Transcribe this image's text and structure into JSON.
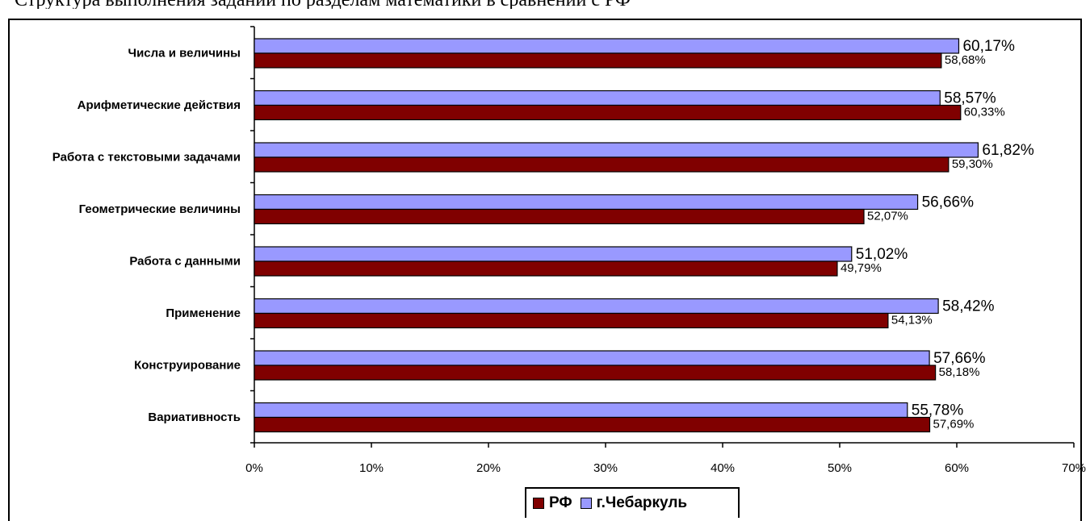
{
  "header_fragment": "Структура выполнения заданий по разделам математики в сравнении с РФ",
  "chart_data": {
    "type": "bar",
    "orientation": "horizontal",
    "categories": [
      "Числа и величины",
      "Арифметические действия",
      "Работа с текстовыми задачами",
      "Геометрические величины",
      "Работа с данными",
      "Применение",
      "Конструирование",
      "Вариативность"
    ],
    "series": [
      {
        "name": "г.Чебаркуль",
        "color": "#9999ff",
        "values": [
          60.17,
          58.57,
          61.82,
          56.66,
          51.02,
          58.42,
          57.66,
          55.78
        ],
        "labels": [
          "60,17%",
          "58,57%",
          "61,82%",
          "56,66%",
          "51,02%",
          "58,42%",
          "57,66%",
          "55,78%"
        ]
      },
      {
        "name": "РФ",
        "color": "#800000",
        "values": [
          58.68,
          60.33,
          59.3,
          52.07,
          49.79,
          54.13,
          58.18,
          57.69
        ],
        "labels": [
          "58,68%",
          "60,33%",
          "59,30%",
          "52,07%",
          "49,79%",
          "54,13%",
          "58,18%",
          "57,69%"
        ]
      }
    ],
    "xlim": [
      0,
      70
    ],
    "xticks": [
      0,
      10,
      20,
      30,
      40,
      50,
      60,
      70
    ],
    "xtick_labels": [
      "0%",
      "10%",
      "20%",
      "30%",
      "40%",
      "50%",
      "60%",
      "70%"
    ],
    "grid": false,
    "legend_position": "bottom",
    "legend": [
      "РФ",
      "г.Чебаркуль"
    ]
  }
}
